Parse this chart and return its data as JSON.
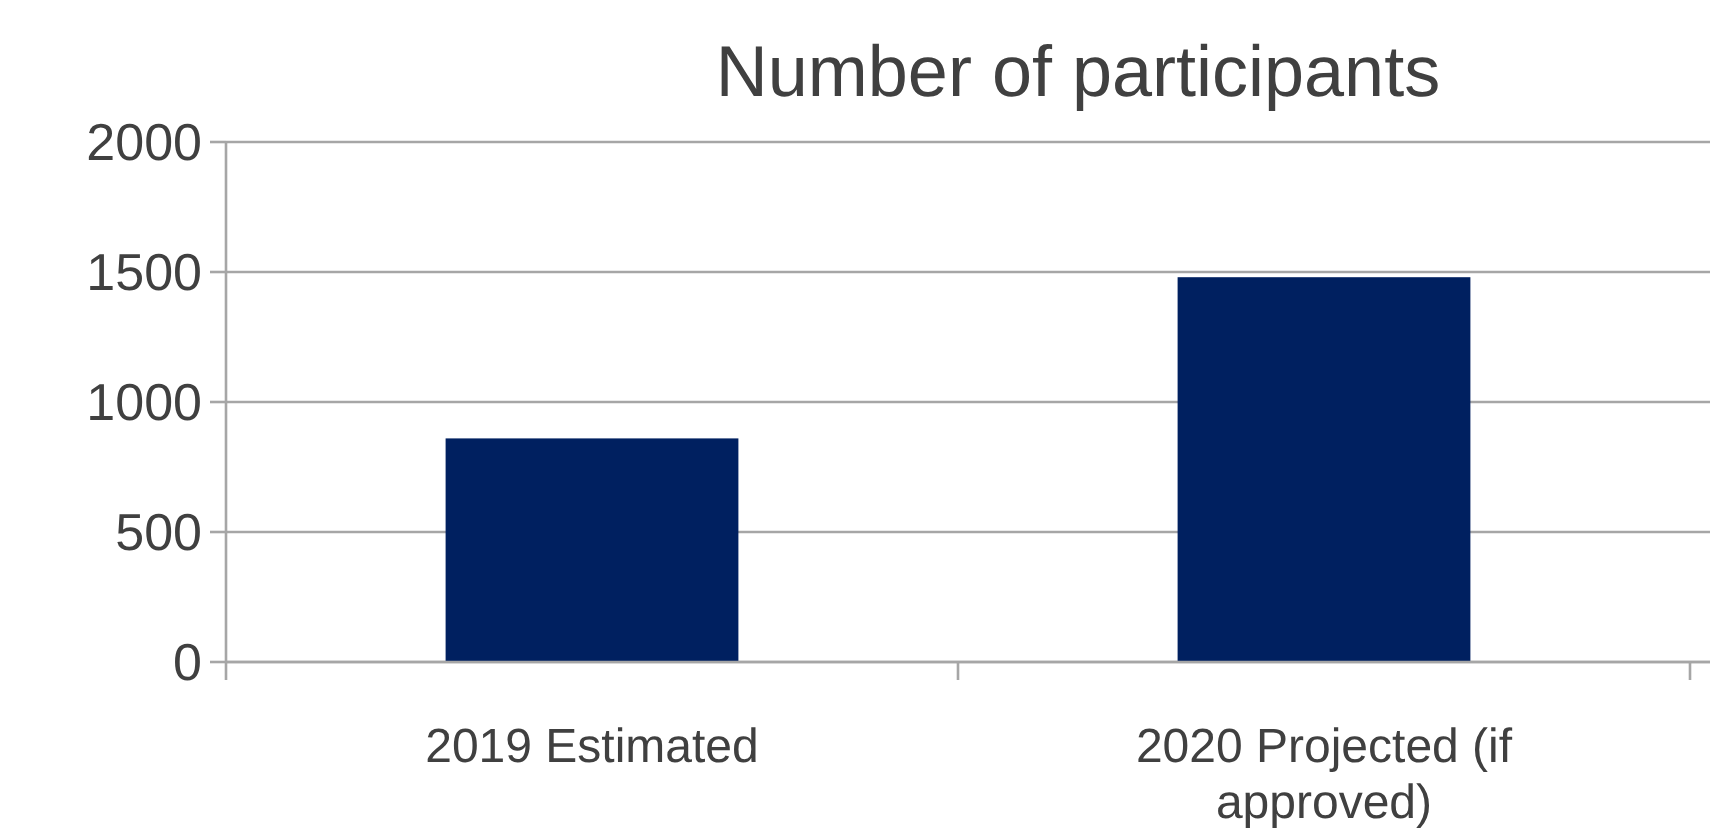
{
  "chart_data": {
    "type": "bar",
    "title": "Number of participants",
    "categories": [
      "2019 Estimated",
      "2020 Projected (if approved)"
    ],
    "values": [
      860,
      1480
    ],
    "color": "#002060",
    "ylim": [
      0,
      2000
    ],
    "yticks": [
      0,
      500,
      1000,
      1500,
      2000
    ],
    "grid": "y"
  }
}
